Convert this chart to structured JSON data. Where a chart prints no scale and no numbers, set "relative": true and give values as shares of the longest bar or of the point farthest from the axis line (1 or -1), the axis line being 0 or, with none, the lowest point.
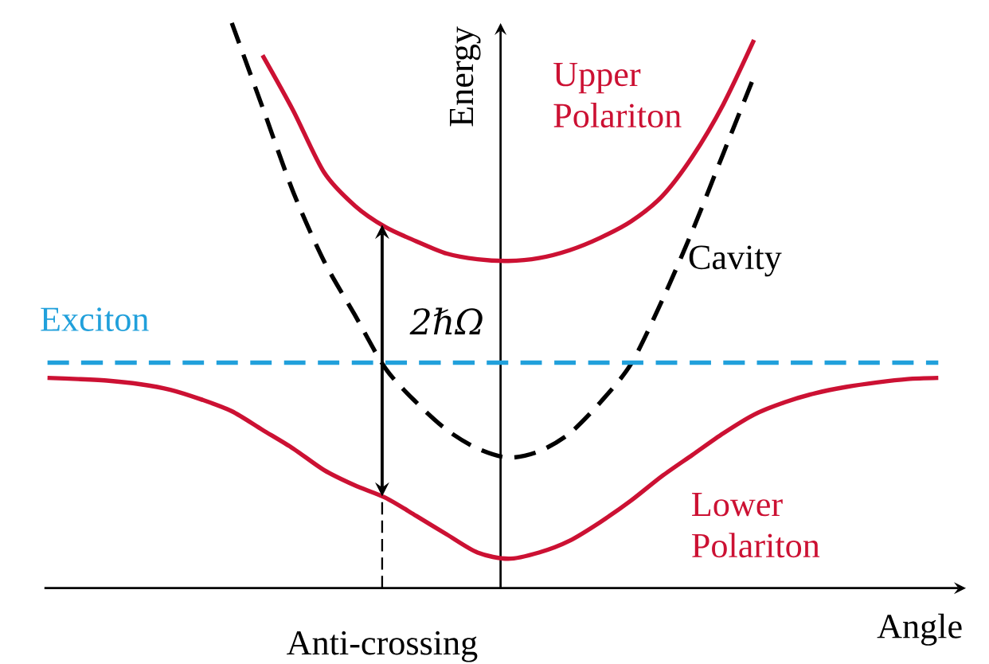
{
  "chart_data": {
    "type": "line",
    "relative": true,
    "xlabel": "Angle",
    "ylabel": "Energy",
    "annotations": [
      "2ℏΩ",
      "Anti-crossing"
    ],
    "categories": [
      null,
      null,
      null,
      null,
      null,
      null,
      null,
      null,
      null,
      null,
      null,
      null,
      null,
      null,
      null,
      null,
      null,
      null,
      null,
      null,
      null,
      null,
      null,
      null,
      null,
      null,
      null,
      null,
      null,
      null
    ],
    "series": [
      {
        "name": "Upper Polariton",
        "color": "#cc1133",
        "line_style": "solid",
        "values": [
          null,
          null,
          null,
          null,
          null,
          null,
          null,
          0.943,
          0.845,
          0.736,
          0.677,
          0.639,
          0.614,
          0.592,
          0.582,
          0.579,
          0.584,
          0.598,
          0.62,
          0.649,
          0.693,
          0.764,
          0.856,
          0.97,
          null,
          null,
          null,
          null,
          null,
          null
        ]
      },
      {
        "name": "Cavity",
        "color": "#000000",
        "line_style": "dashed",
        "values": [
          null,
          null,
          null,
          null,
          null,
          null,
          1.0,
          0.851,
          0.701,
          0.579,
          0.484,
          0.389,
          0.329,
          0.28,
          0.247,
          0.231,
          0.242,
          0.274,
          0.329,
          0.397,
          0.508,
          0.633,
          0.769,
          0.905,
          null,
          null,
          null,
          null,
          null,
          null
        ]
      },
      {
        "name": "Exciton",
        "color": "#21a0db",
        "line_style": "dashed",
        "values": [
          0.399,
          0.399,
          0.399,
          0.399,
          0.399,
          0.399,
          0.399,
          0.399,
          0.399,
          0.399,
          0.399,
          0.399,
          0.399,
          0.399,
          0.399,
          0.399,
          0.399,
          0.399,
          0.399,
          0.399,
          0.399,
          0.399,
          0.399,
          0.399,
          0.399,
          0.399,
          0.399,
          0.399,
          0.399,
          0.399
        ]
      },
      {
        "name": "Lower Polariton",
        "color": "#cc1133",
        "line_style": "solid",
        "values": [
          0.372,
          0.37,
          0.367,
          0.361,
          0.351,
          0.334,
          0.313,
          0.28,
          0.247,
          0.209,
          0.182,
          0.16,
          0.128,
          0.095,
          0.063,
          0.052,
          0.063,
          0.084,
          0.117,
          0.155,
          0.198,
          0.236,
          0.274,
          0.307,
          0.329,
          0.345,
          0.356,
          0.364,
          0.37,
          0.372
        ]
      }
    ]
  }
}
